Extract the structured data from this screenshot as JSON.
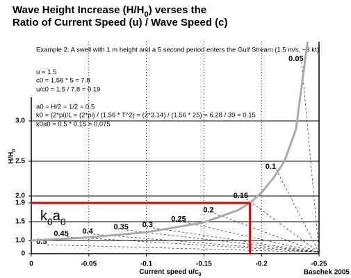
{
  "chart_data": {
    "type": "line",
    "title": [
      "Wave Height Increase (H/H",
      "0",
      ") verses the"
    ],
    "subtitle": "Ratio of Current Speed (u) / Wave Speed (c)",
    "annotation_lines": [
      "Example 2: A swell with 1 m height and a 5 second period enters the Gulf Stream (1.5 m/s, ~3 kt)",
      "u = 1.5",
      "c0 = 1.56 * 5 = 7.8",
      "u/c0 = 1.5 / 7.8 = 0.19",
      "a0 = H/2 = 1/2 = 0.5",
      "k0 = (2*pi)/L = (2*pi) / (1.56 * T^2) = (2*3.14) / (1.56 * 25) = 6.28 / 39 = 0.15",
      "k0a0 = 0.5 * 0.15 = 0.075"
    ],
    "x_label": [
      "Current speed u/c",
      "0"
    ],
    "y_label": [
      "H/H",
      "0"
    ],
    "credit": "Baschek 2005",
    "x": [
      0,
      -0.05,
      -0.1,
      -0.15,
      -0.18,
      -0.19,
      -0.2,
      -0.21,
      -0.22,
      -0.23,
      -0.24
    ],
    "series": [
      {
        "color": "#aaaaaa",
        "values": [
          1,
          1.08,
          1.22,
          1.48,
          1.75,
          1.9,
          2.05,
          2.25,
          2.5,
          2.9,
          4
        ]
      }
    ],
    "marker": {
      "x": -0.19,
      "y": 1.9,
      "color": "#e00000",
      "label": [
        "k",
        "0",
        "a",
        "0"
      ]
    },
    "steepness_labels": [
      {
        "k0a0": 0.05,
        "x": -0.23,
        "y": 3.78
      },
      {
        "k0a0": 0.1,
        "x": -0.208,
        "y": 2.42
      },
      {
        "k0a0": 0.15,
        "x": -0.182,
        "y": 2.0
      },
      {
        "k0a0": 0.2,
        "x": -0.154,
        "y": 1.74
      },
      {
        "k0a0": 0.25,
        "x": -0.128,
        "y": 1.55
      },
      {
        "k0a0": 0.3,
        "x": -0.101,
        "y": 1.41
      },
      {
        "k0a0": 0.35,
        "x": -0.078,
        "y": 1.35
      },
      {
        "k0a0": 0.4,
        "x": -0.049,
        "y": 1.24
      },
      {
        "k0a0": 0.45,
        "x": -0.026,
        "y": 1.17
      },
      {
        "k0a0": 0.5,
        "x": -0.009,
        "y": 0.89
      }
    ],
    "xlim": [
      0,
      -0.25
    ],
    "xticks": [
      0,
      -0.05,
      -0.1,
      -0.15,
      -0.2,
      -0.25
    ],
    "ylim": [
      0,
      4
    ],
    "yticks": [
      0,
      {
        "value": 1,
        "label": "1.0"
      },
      1.5,
      1.9,
      {
        "value": 2,
        "label": "2.0"
      },
      2.5,
      {
        "value": 3,
        "label": "3.0"
      }
    ],
    "xgrid": [
      -0.05,
      -0.1,
      -0.15,
      -0.2
    ],
    "ygrid": [
      1,
      1.5,
      2,
      2.5,
      3
    ]
  }
}
